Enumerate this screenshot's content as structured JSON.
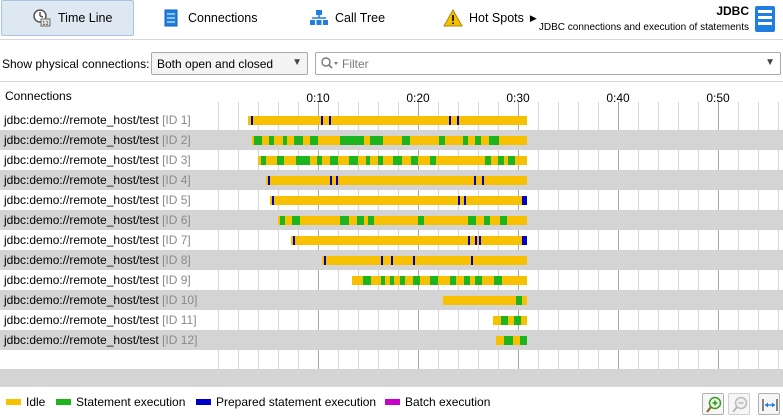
{
  "tabs": [
    {
      "label": "Time Line",
      "icon": "timeline-icon",
      "active": true
    },
    {
      "label": "Connections",
      "icon": "connections-icon",
      "active": false
    },
    {
      "label": "Call Tree",
      "icon": "call-tree-icon",
      "active": false
    },
    {
      "label": "Hot Spots",
      "icon": "hot-spots-warning-icon",
      "active": false
    }
  ],
  "header": {
    "title": "JDBC",
    "subtitle": "JDBC connections and execution of statements"
  },
  "filter": {
    "label": "Show physical connections:",
    "selected": "Both open and closed",
    "search_placeholder": "Filter"
  },
  "timeline": {
    "column_header": "Connections",
    "axis_unit": "seconds",
    "axis_ticks": [
      {
        "label": "0:10",
        "seconds": 10
      },
      {
        "label": "0:20",
        "seconds": 20
      },
      {
        "label": "0:30",
        "seconds": 30
      },
      {
        "label": "0:40",
        "seconds": 40
      },
      {
        "label": "0:50",
        "seconds": 50
      }
    ],
    "rows": [
      {
        "name": "jdbc:demo://remote_host/test",
        "id": "[ID 1]",
        "segments": [
          [
            3.0,
            30.9,
            "idle"
          ],
          [
            3.3,
            3.5,
            "prepared"
          ],
          [
            10.3,
            10.5,
            "prepared"
          ],
          [
            11.1,
            11.3,
            "prepared"
          ],
          [
            23.1,
            23.3,
            "prepared"
          ],
          [
            23.9,
            24.1,
            "prepared"
          ]
        ]
      },
      {
        "name": "jdbc:demo://remote_host/test",
        "id": "[ID 2]",
        "segments": [
          [
            3.4,
            30.9,
            "idle"
          ],
          [
            3.6,
            4.4,
            "statement"
          ],
          [
            5.1,
            5.6,
            "statement"
          ],
          [
            6.5,
            6.9,
            "statement"
          ],
          [
            7.6,
            8.5,
            "statement"
          ],
          [
            9.2,
            10.0,
            "statement"
          ],
          [
            12.2,
            14.6,
            "statement"
          ],
          [
            15.2,
            16.5,
            "statement"
          ],
          [
            18.4,
            19.2,
            "statement"
          ],
          [
            22.1,
            22.7,
            "statement"
          ],
          [
            24.5,
            25.0,
            "statement"
          ],
          [
            25.7,
            26.3,
            "statement"
          ],
          [
            27.1,
            28.1,
            "statement"
          ]
        ]
      },
      {
        "name": "jdbc:demo://remote_host/test",
        "id": "[ID 3]",
        "segments": [
          [
            4.0,
            30.9,
            "idle"
          ],
          [
            4.3,
            4.8,
            "statement"
          ],
          [
            5.9,
            6.6,
            "statement"
          ],
          [
            7.8,
            9.2,
            "statement"
          ],
          [
            9.9,
            10.4,
            "statement"
          ],
          [
            11.2,
            12.0,
            "statement"
          ],
          [
            13.1,
            14.0,
            "statement"
          ],
          [
            14.8,
            15.2,
            "statement"
          ],
          [
            16.0,
            16.5,
            "statement"
          ],
          [
            17.5,
            18.4,
            "statement"
          ],
          [
            19.3,
            20.0,
            "statement"
          ],
          [
            21.2,
            21.8,
            "statement"
          ],
          [
            26.7,
            27.3,
            "statement"
          ],
          [
            28.0,
            28.6,
            "statement"
          ],
          [
            29.0,
            29.7,
            "statement"
          ]
        ]
      },
      {
        "name": "jdbc:demo://remote_host/test",
        "id": "[ID 4]",
        "segments": [
          [
            4.8,
            30.9,
            "idle"
          ],
          [
            5.0,
            5.2,
            "prepared"
          ],
          [
            11.2,
            11.4,
            "prepared"
          ],
          [
            11.8,
            12.0,
            "prepared"
          ],
          [
            25.6,
            25.8,
            "prepared"
          ],
          [
            26.4,
            26.6,
            "prepared"
          ]
        ]
      },
      {
        "name": "jdbc:demo://remote_host/test",
        "id": "[ID 5]",
        "segments": [
          [
            5.2,
            30.9,
            "idle"
          ],
          [
            5.4,
            5.6,
            "prepared"
          ],
          [
            24.0,
            24.2,
            "prepared"
          ],
          [
            24.6,
            24.8,
            "prepared"
          ],
          [
            30.4,
            30.9,
            "prepared"
          ]
        ]
      },
      {
        "name": "jdbc:demo://remote_host/test",
        "id": "[ID 6]",
        "segments": [
          [
            6.0,
            30.9,
            "idle"
          ],
          [
            6.2,
            6.7,
            "statement"
          ],
          [
            7.4,
            8.2,
            "statement"
          ],
          [
            12.2,
            13.1,
            "statement"
          ],
          [
            13.9,
            14.6,
            "statement"
          ],
          [
            15.0,
            15.6,
            "statement"
          ],
          [
            20.0,
            20.6,
            "statement"
          ],
          [
            25.0,
            25.8,
            "statement"
          ],
          [
            26.6,
            27.2,
            "statement"
          ],
          [
            28.2,
            28.9,
            "statement"
          ]
        ]
      },
      {
        "name": "jdbc:demo://remote_host/test",
        "id": "[ID 7]",
        "segments": [
          [
            7.3,
            30.9,
            "idle"
          ],
          [
            7.5,
            7.7,
            "prepared"
          ],
          [
            25.0,
            25.2,
            "prepared"
          ],
          [
            25.7,
            25.9,
            "prepared"
          ],
          [
            26.1,
            26.3,
            "prepared"
          ],
          [
            30.4,
            30.9,
            "prepared"
          ]
        ]
      },
      {
        "name": "jdbc:demo://remote_host/test",
        "id": "[ID 8]",
        "segments": [
          [
            10.4,
            30.9,
            "idle"
          ],
          [
            10.6,
            10.8,
            "prepared"
          ],
          [
            16.3,
            16.5,
            "prepared"
          ],
          [
            17.3,
            17.5,
            "prepared"
          ],
          [
            19.5,
            19.7,
            "prepared"
          ],
          [
            25.3,
            25.5,
            "prepared"
          ]
        ]
      },
      {
        "name": "jdbc:demo://remote_host/test",
        "id": "[ID 9]",
        "segments": [
          [
            13.4,
            30.9,
            "idle"
          ],
          [
            14.5,
            15.3,
            "statement"
          ],
          [
            16.3,
            16.7,
            "statement"
          ],
          [
            17.2,
            17.6,
            "statement"
          ],
          [
            18.2,
            18.7,
            "statement"
          ],
          [
            19.5,
            20.2,
            "statement"
          ],
          [
            21.2,
            22.0,
            "statement"
          ],
          [
            23.2,
            23.8,
            "statement"
          ],
          [
            24.6,
            25.2,
            "statement"
          ],
          [
            25.7,
            26.4,
            "statement"
          ],
          [
            27.6,
            28.4,
            "statement"
          ]
        ]
      },
      {
        "name": "jdbc:demo://remote_host/test",
        "id": "[ID 10]",
        "segments": [
          [
            22.5,
            30.9,
            "idle"
          ],
          [
            29.8,
            30.4,
            "statement"
          ]
        ]
      },
      {
        "name": "jdbc:demo://remote_host/test",
        "id": "[ID 11]",
        "segments": [
          [
            27.5,
            30.9,
            "idle"
          ],
          [
            28.3,
            29.0,
            "statement"
          ],
          [
            29.6,
            30.3,
            "statement"
          ]
        ]
      },
      {
        "name": "jdbc:demo://remote_host/test",
        "id": "[ID 12]",
        "segments": [
          [
            27.8,
            30.9,
            "idle"
          ],
          [
            28.6,
            29.5,
            "statement"
          ],
          [
            30.2,
            30.9,
            "statement"
          ]
        ]
      }
    ]
  },
  "legend": [
    {
      "label": "Idle",
      "kind": "idle"
    },
    {
      "label": "Statement execution",
      "kind": "statement"
    },
    {
      "label": "Prepared statement execution",
      "kind": "prepared"
    },
    {
      "label": "Batch execution",
      "kind": "batch"
    }
  ],
  "colors": {
    "idle": "#f7c100",
    "statement": "#1db51d",
    "prepared": "#0000c8",
    "batch": "#c800c8",
    "accent": "#1a6fc9"
  },
  "zoom_buttons": [
    {
      "icon": "zoom-in-icon"
    },
    {
      "icon": "zoom-out-icon"
    },
    {
      "icon": "fit-width-icon"
    }
  ]
}
